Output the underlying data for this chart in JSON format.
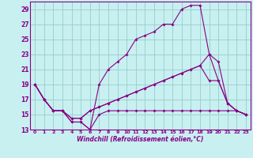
{
  "xlabel": "Windchill (Refroidissement éolien,°C)",
  "background_color": "#c8f0f0",
  "line_color": "#880088",
  "grid_color": "#99cccc",
  "xlim": [
    -0.5,
    23.5
  ],
  "ylim": [
    13,
    30
  ],
  "xticks": [
    0,
    1,
    2,
    3,
    4,
    5,
    6,
    7,
    8,
    9,
    10,
    11,
    12,
    13,
    14,
    15,
    16,
    17,
    18,
    19,
    20,
    21,
    22,
    23
  ],
  "yticks": [
    13,
    15,
    17,
    19,
    21,
    23,
    25,
    27,
    29
  ],
  "line1_x": [
    0,
    1,
    2,
    3,
    4,
    5,
    6,
    7,
    8,
    9,
    10,
    11,
    12,
    13,
    14,
    15,
    16,
    17,
    18,
    19,
    20,
    21,
    22,
    23
  ],
  "line1_y": [
    19,
    17,
    15.5,
    15.5,
    14,
    14,
    13,
    15,
    15.5,
    15.5,
    15.5,
    15.5,
    15.5,
    15.5,
    15.5,
    15.5,
    15.5,
    15.5,
    15.5,
    15.5,
    15.5,
    15.5,
    15.5,
    15
  ],
  "line2_x": [
    0,
    1,
    2,
    3,
    4,
    5,
    6,
    7,
    8,
    9,
    10,
    11,
    12,
    13,
    14,
    15,
    16,
    17,
    18,
    19,
    20,
    21,
    22,
    23
  ],
  "line2_y": [
    19,
    17,
    15.5,
    15.5,
    14,
    14,
    13,
    19,
    21,
    22,
    23,
    25,
    25.5,
    26,
    27,
    27,
    29,
    29.5,
    29.5,
    23,
    22,
    16.5,
    15.5,
    15
  ],
  "line3_x": [
    0,
    1,
    2,
    3,
    4,
    5,
    6,
    7,
    8,
    9,
    10,
    11,
    12,
    13,
    14,
    15,
    16,
    17,
    18,
    19,
    20,
    21,
    22,
    23
  ],
  "line3_y": [
    19,
    17,
    15.5,
    15.5,
    14.5,
    14.5,
    15.5,
    16,
    16.5,
    17,
    17.5,
    18,
    18.5,
    19,
    19.5,
    20,
    20.5,
    21,
    21.5,
    23,
    19.5,
    16.5,
    15.5,
    15
  ],
  "line4_x": [
    0,
    1,
    2,
    3,
    4,
    5,
    6,
    7,
    8,
    9,
    10,
    11,
    12,
    13,
    14,
    15,
    16,
    17,
    18,
    19,
    20,
    21,
    22,
    23
  ],
  "line4_y": [
    19,
    17,
    15.5,
    15.5,
    14.5,
    14.5,
    15.5,
    16,
    16.5,
    17,
    17.5,
    18,
    18.5,
    19,
    19.5,
    20,
    20.5,
    21,
    21.5,
    19.5,
    19.5,
    16.5,
    15.5,
    15
  ],
  "marker": "D",
  "markersize": 2.0,
  "linewidth": 0.8
}
